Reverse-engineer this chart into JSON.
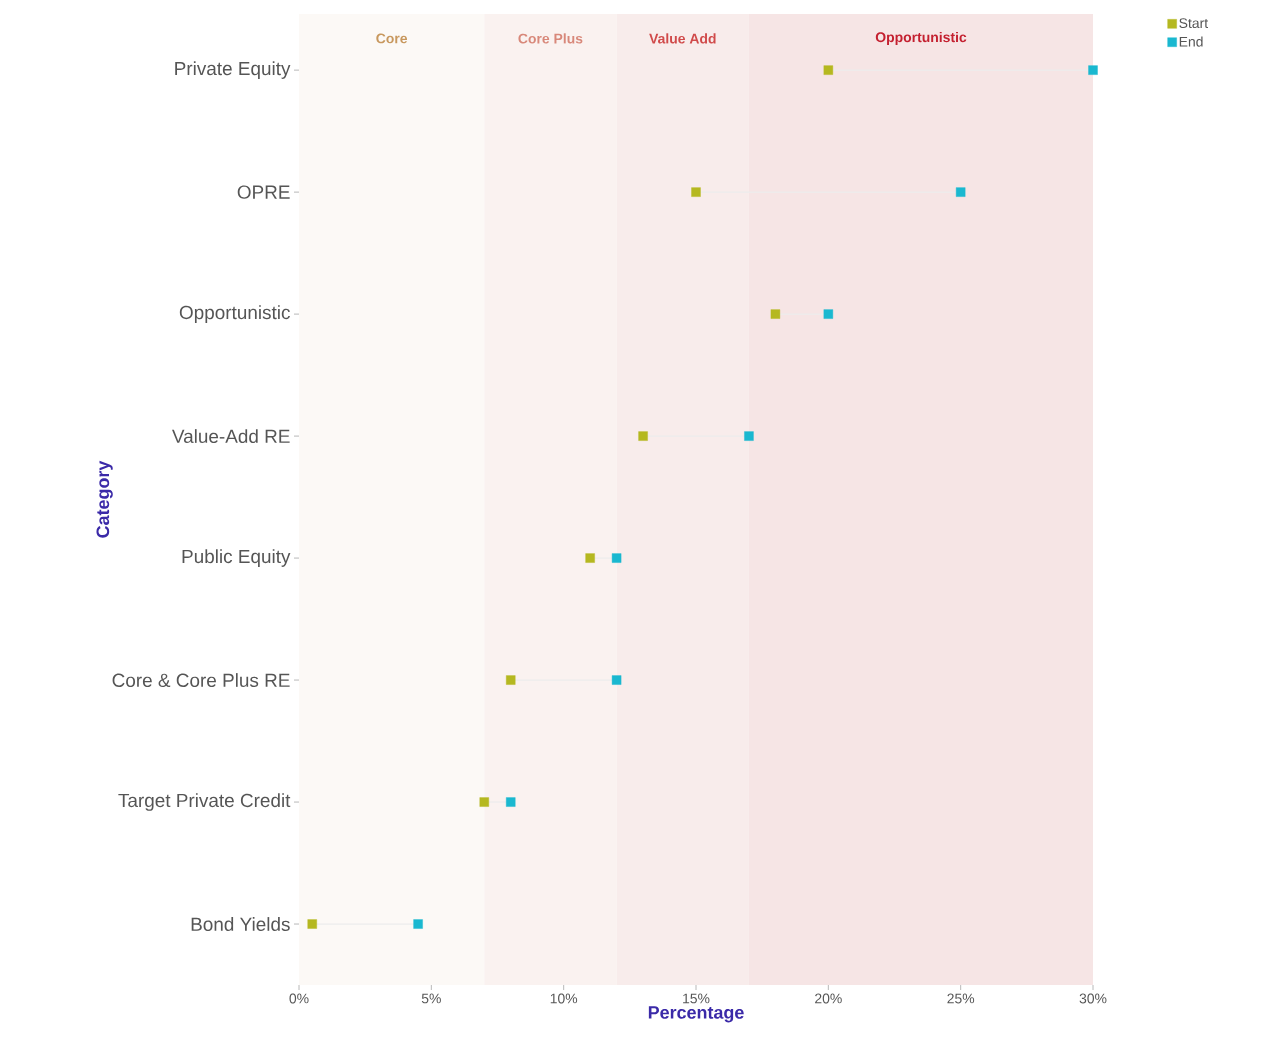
{
  "chart_data": {
    "type": "scatter",
    "orientation": "horizontal",
    "xlabel": "Percentage",
    "ylabel": "Category",
    "categories": [
      "Private Equity",
      "OPRE",
      "Opportunistic",
      "Value-Add RE",
      "Public Equity",
      "Core & Core Plus RE",
      "Target Private Credit",
      "Bond Yields"
    ],
    "series": [
      {
        "name": "Start",
        "color": "#b5b820",
        "values": [
          20,
          15,
          18,
          13,
          11,
          8,
          7,
          0.5
        ]
      },
      {
        "name": "End",
        "color": "#1ab8d0",
        "values": [
          30,
          25,
          20,
          17,
          12,
          12,
          8,
          4.5
        ]
      }
    ],
    "xlim": [
      0,
      30
    ],
    "xticks": [
      {
        "value": 0,
        "label": "0%"
      },
      {
        "value": 5,
        "label": "5%"
      },
      {
        "value": 10,
        "label": "10%"
      },
      {
        "value": 15,
        "label": "15%"
      },
      {
        "value": 20,
        "label": "20%"
      },
      {
        "value": 25,
        "label": "25%"
      },
      {
        "value": 30,
        "label": "30%"
      }
    ],
    "bands": [
      {
        "axis": "x",
        "from": 0,
        "to": 7,
        "label": "Core",
        "color": "#fcf9f6"
      },
      {
        "axis": "x",
        "from": 7,
        "to": 12,
        "label": "Core Plus",
        "color": "#faf2f0"
      },
      {
        "axis": "x",
        "from": 12,
        "to": 17,
        "label": "Value Add",
        "color": "#f8eceb"
      },
      {
        "axis": "x",
        "from": 17,
        "to": 30,
        "label": "Opportunistic",
        "color": "#f6e5e5"
      }
    ],
    "marker": "square",
    "grid": false,
    "legend": "top right"
  }
}
